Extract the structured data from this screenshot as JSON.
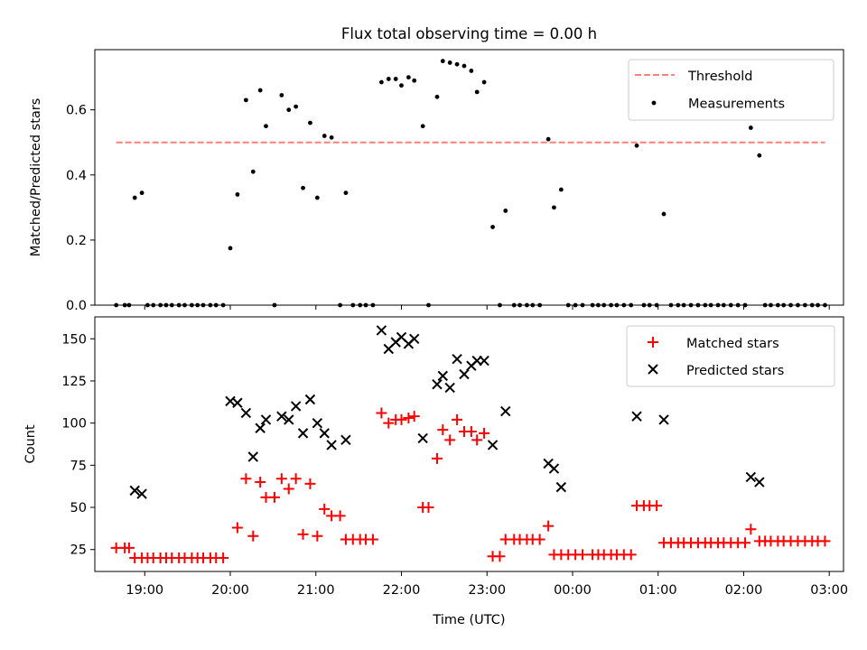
{
  "chart_data": [
    {
      "type": "scatter",
      "title": "Flux total observing time = 0.00 h",
      "xlabel": "",
      "ylabel": "Matched/Predicted stars",
      "ylim": [
        0,
        0.785
      ],
      "yticks": [
        "0.0",
        "0.2",
        "0.4",
        "0.6"
      ],
      "ytick_values": [
        0,
        0.2,
        0.4,
        0.6
      ],
      "threshold": {
        "name": "Threshold",
        "value": 0.5,
        "x_start": "18:40",
        "x_end": "02:57",
        "color": "#ff7f7f"
      },
      "legend_position": "top-right",
      "series": [
        {
          "name": "Measurements",
          "color": "#000000",
          "points": [
            [
              "18:40",
              0
            ],
            [
              "18:46",
              0
            ],
            [
              "18:49",
              0
            ],
            [
              "18:53",
              0.33
            ],
            [
              "18:58",
              0.345
            ],
            [
              "19:02",
              0
            ],
            [
              "19:06",
              0
            ],
            [
              "19:11",
              0
            ],
            [
              "19:15",
              0
            ],
            [
              "19:19",
              0
            ],
            [
              "19:24",
              0
            ],
            [
              "19:28",
              0
            ],
            [
              "19:33",
              0
            ],
            [
              "19:37",
              0
            ],
            [
              "19:41",
              0
            ],
            [
              "19:46",
              0
            ],
            [
              "19:50",
              0
            ],
            [
              "19:55",
              0
            ],
            [
              "20:00",
              0.175
            ],
            [
              "20:05",
              0.34
            ],
            [
              "20:11",
              0.63
            ],
            [
              "20:16",
              0.41
            ],
            [
              "20:21",
              0.66
            ],
            [
              "20:25",
              0.55
            ],
            [
              "20:31",
              0
            ],
            [
              "20:36",
              0.645
            ],
            [
              "20:41",
              0.6
            ],
            [
              "20:46",
              0.61
            ],
            [
              "20:51",
              0.36
            ],
            [
              "20:56",
              0.56
            ],
            [
              "21:01",
              0.33
            ],
            [
              "21:06",
              0.52
            ],
            [
              "21:11",
              0.515
            ],
            [
              "21:17",
              0
            ],
            [
              "21:21",
              0.345
            ],
            [
              "21:26",
              0
            ],
            [
              "21:31",
              0
            ],
            [
              "21:35",
              0
            ],
            [
              "21:40",
              0
            ],
            [
              "21:46",
              0.685
            ],
            [
              "21:51",
              0.695
            ],
            [
              "21:56",
              0.695
            ],
            [
              "22:00",
              0.675
            ],
            [
              "22:05",
              0.7
            ],
            [
              "22:09",
              0.69
            ],
            [
              "22:15",
              0.55
            ],
            [
              "22:19",
              0
            ],
            [
              "22:25",
              0.64
            ],
            [
              "22:29",
              0.75
            ],
            [
              "22:34",
              0.745
            ],
            [
              "22:39",
              0.74
            ],
            [
              "22:44",
              0.735
            ],
            [
              "22:49",
              0.72
            ],
            [
              "22:53",
              0.655
            ],
            [
              "22:58",
              0.685
            ],
            [
              "23:04",
              0.24
            ],
            [
              "23:09",
              0
            ],
            [
              "23:13",
              0.29
            ],
            [
              "23:19",
              0
            ],
            [
              "23:23",
              0
            ],
            [
              "23:28",
              0
            ],
            [
              "23:32",
              0
            ],
            [
              "23:37",
              0
            ],
            [
              "23:43",
              0.51
            ],
            [
              "23:47",
              0.3
            ],
            [
              "23:52",
              0.355
            ],
            [
              "23:57",
              0
            ],
            [
              "00:02",
              0
            ],
            [
              "00:07",
              0
            ],
            [
              "00:14",
              0
            ],
            [
              "00:18",
              0
            ],
            [
              "00:22",
              0
            ],
            [
              "00:27",
              0
            ],
            [
              "00:31",
              0
            ],
            [
              "00:36",
              0
            ],
            [
              "00:41",
              0
            ],
            [
              "00:45",
              0.49
            ],
            [
              "00:50",
              0
            ],
            [
              "00:54",
              0
            ],
            [
              "00:59",
              0
            ],
            [
              "01:04",
              0.28
            ],
            [
              "01:09",
              0
            ],
            [
              "01:14",
              0
            ],
            [
              "01:18",
              0
            ],
            [
              "01:23",
              0
            ],
            [
              "01:28",
              0
            ],
            [
              "01:33",
              0
            ],
            [
              "01:37",
              0
            ],
            [
              "01:42",
              0
            ],
            [
              "01:46",
              0
            ],
            [
              "01:51",
              0
            ],
            [
              "01:56",
              0
            ],
            [
              "02:01",
              0
            ],
            [
              "02:05",
              0.545
            ],
            [
              "02:11",
              0.46
            ],
            [
              "02:15",
              0
            ],
            [
              "02:19",
              0
            ],
            [
              "02:24",
              0
            ],
            [
              "02:28",
              0
            ],
            [
              "02:33",
              0
            ],
            [
              "02:38",
              0
            ],
            [
              "02:43",
              0
            ],
            [
              "02:48",
              0
            ],
            [
              "02:52",
              0
            ],
            [
              "02:57",
              0
            ]
          ]
        }
      ]
    },
    {
      "type": "scatter",
      "title": "",
      "xlabel": "Time (UTC)",
      "ylabel": "Count",
      "ylim": [
        12,
        163
      ],
      "yticks": [
        "25",
        "50",
        "75",
        "100",
        "125",
        "150"
      ],
      "ytick_values": [
        25,
        50,
        75,
        100,
        125,
        150
      ],
      "legend_position": "top-right",
      "x_domain": [
        "18:25",
        "03:10"
      ],
      "xticks": [
        "19:00",
        "20:00",
        "21:00",
        "22:00",
        "23:00",
        "00:00",
        "01:00",
        "02:00",
        "03:00"
      ],
      "series": [
        {
          "name": "Matched stars",
          "marker": "+",
          "color": "#ff0000",
          "points": [
            [
              "18:40",
              26
            ],
            [
              "18:46",
              26
            ],
            [
              "18:49",
              26
            ],
            [
              "18:53",
              20
            ],
            [
              "18:58",
              20
            ],
            [
              "19:02",
              20
            ],
            [
              "19:06",
              20
            ],
            [
              "19:11",
              20
            ],
            [
              "19:15",
              20
            ],
            [
              "19:19",
              20
            ],
            [
              "19:24",
              20
            ],
            [
              "19:28",
              20
            ],
            [
              "19:33",
              20
            ],
            [
              "19:37",
              20
            ],
            [
              "19:41",
              20
            ],
            [
              "19:46",
              20
            ],
            [
              "19:50",
              20
            ],
            [
              "19:55",
              20
            ],
            [
              "20:05",
              38
            ],
            [
              "20:11",
              67
            ],
            [
              "20:16",
              33
            ],
            [
              "20:21",
              65
            ],
            [
              "20:25",
              56
            ],
            [
              "20:31",
              56
            ],
            [
              "20:36",
              67
            ],
            [
              "20:41",
              61
            ],
            [
              "20:46",
              67
            ],
            [
              "20:51",
              34
            ],
            [
              "20:56",
              64
            ],
            [
              "21:01",
              33
            ],
            [
              "21:06",
              49
            ],
            [
              "21:11",
              45
            ],
            [
              "21:17",
              45
            ],
            [
              "21:21",
              31
            ],
            [
              "21:26",
              31
            ],
            [
              "21:31",
              31
            ],
            [
              "21:35",
              31
            ],
            [
              "21:40",
              31
            ],
            [
              "21:46",
              106
            ],
            [
              "21:51",
              100
            ],
            [
              "21:56",
              102
            ],
            [
              "22:00",
              102
            ],
            [
              "22:05",
              103
            ],
            [
              "22:09",
              104
            ],
            [
              "22:15",
              50
            ],
            [
              "22:19",
              50
            ],
            [
              "22:25",
              79
            ],
            [
              "22:29",
              96
            ],
            [
              "22:34",
              90
            ],
            [
              "22:39",
              102
            ],
            [
              "22:44",
              95
            ],
            [
              "22:49",
              95
            ],
            [
              "22:53",
              90
            ],
            [
              "22:58",
              94
            ],
            [
              "23:04",
              21
            ],
            [
              "23:09",
              21
            ],
            [
              "23:13",
              31
            ],
            [
              "23:19",
              31
            ],
            [
              "23:23",
              31
            ],
            [
              "23:28",
              31
            ],
            [
              "23:32",
              31
            ],
            [
              "23:37",
              31
            ],
            [
              "23:43",
              39
            ],
            [
              "23:47",
              22
            ],
            [
              "23:52",
              22
            ],
            [
              "23:57",
              22
            ],
            [
              "00:02",
              22
            ],
            [
              "00:07",
              22
            ],
            [
              "00:14",
              22
            ],
            [
              "00:18",
              22
            ],
            [
              "00:22",
              22
            ],
            [
              "00:27",
              22
            ],
            [
              "00:31",
              22
            ],
            [
              "00:36",
              22
            ],
            [
              "00:41",
              22
            ],
            [
              "00:45",
              51
            ],
            [
              "00:50",
              51
            ],
            [
              "00:54",
              51
            ],
            [
              "00:59",
              51
            ],
            [
              "01:04",
              29
            ],
            [
              "01:09",
              29
            ],
            [
              "01:14",
              29
            ],
            [
              "01:18",
              29
            ],
            [
              "01:23",
              29
            ],
            [
              "01:28",
              29
            ],
            [
              "01:33",
              29
            ],
            [
              "01:37",
              29
            ],
            [
              "01:42",
              29
            ],
            [
              "01:46",
              29
            ],
            [
              "01:51",
              29
            ],
            [
              "01:56",
              29
            ],
            [
              "02:01",
              29
            ],
            [
              "02:05",
              37
            ],
            [
              "02:11",
              30
            ],
            [
              "02:15",
              30
            ],
            [
              "02:19",
              30
            ],
            [
              "02:24",
              30
            ],
            [
              "02:28",
              30
            ],
            [
              "02:33",
              30
            ],
            [
              "02:38",
              30
            ],
            [
              "02:43",
              30
            ],
            [
              "02:48",
              30
            ],
            [
              "02:52",
              30
            ],
            [
              "02:57",
              30
            ]
          ]
        },
        {
          "name": "Predicted stars",
          "marker": "x",
          "color": "#000000",
          "points": [
            [
              "18:53",
              60
            ],
            [
              "18:58",
              58
            ],
            [
              "20:00",
              113
            ],
            [
              "20:05",
              112
            ],
            [
              "20:11",
              106
            ],
            [
              "20:16",
              80
            ],
            [
              "20:21",
              97
            ],
            [
              "20:25",
              102
            ],
            [
              "20:36",
              104
            ],
            [
              "20:41",
              102
            ],
            [
              "20:46",
              110
            ],
            [
              "20:51",
              94
            ],
            [
              "20:56",
              114
            ],
            [
              "21:01",
              100
            ],
            [
              "21:06",
              94
            ],
            [
              "21:11",
              87
            ],
            [
              "21:21",
              90
            ],
            [
              "21:46",
              155
            ],
            [
              "21:51",
              144
            ],
            [
              "21:56",
              148
            ],
            [
              "22:00",
              151
            ],
            [
              "22:05",
              147
            ],
            [
              "22:09",
              150
            ],
            [
              "22:15",
              91
            ],
            [
              "22:25",
              123
            ],
            [
              "22:29",
              128
            ],
            [
              "22:34",
              121
            ],
            [
              "22:39",
              138
            ],
            [
              "22:44",
              129
            ],
            [
              "22:49",
              134
            ],
            [
              "22:53",
              137
            ],
            [
              "22:58",
              137
            ],
            [
              "23:04",
              87
            ],
            [
              "23:13",
              107
            ],
            [
              "23:43",
              76
            ],
            [
              "23:47",
              73
            ],
            [
              "23:52",
              62
            ],
            [
              "00:45",
              104
            ],
            [
              "01:04",
              102
            ],
            [
              "02:05",
              68
            ],
            [
              "02:11",
              65
            ]
          ]
        }
      ]
    }
  ]
}
